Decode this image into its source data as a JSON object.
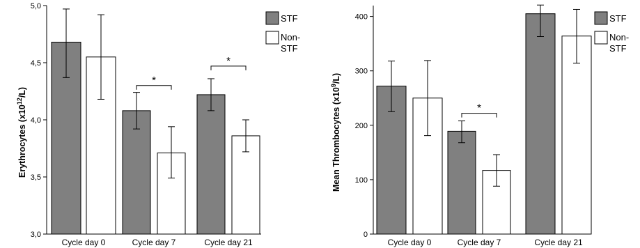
{
  "chart_data": [
    {
      "type": "bar",
      "categories": [
        "Cycle day 0",
        "Cycle day 7",
        "Cycle day 21"
      ],
      "ylabel_main": "Erythrocytes (x10",
      "ylabel_sup": "12",
      "ylabel_tail": "/L)",
      "ylim": [
        3.0,
        5.0
      ],
      "yticks": [
        3.0,
        3.5,
        4.0,
        4.5,
        5.0
      ],
      "ytick_labels": [
        "3,0",
        "3,5",
        "4,0",
        "4,5",
        "5,0"
      ],
      "series": [
        {
          "name": "STF",
          "color": "#808080",
          "values": [
            4.68,
            4.08,
            4.22
          ],
          "err_low": [
            4.37,
            3.92,
            4.08
          ],
          "err_high": [
            4.97,
            4.24,
            4.36
          ]
        },
        {
          "name": "Non-STF",
          "color": "#ffffff",
          "values": [
            4.55,
            3.71,
            3.86
          ],
          "err_low": [
            4.18,
            3.49,
            3.72
          ],
          "err_high": [
            4.92,
            3.94,
            4.0
          ]
        }
      ],
      "significance": [
        {
          "category": 1,
          "label": "*",
          "y": 4.3
        },
        {
          "category": 2,
          "label": "*",
          "y": 4.47
        }
      ],
      "legend": {
        "items": [
          "STF",
          "Non-STF"
        ],
        "nonstf_line1": "Non-",
        "nonstf_line2": "STF",
        "placement": "top-right"
      }
    },
    {
      "type": "bar",
      "categories": [
        "Cycle day 0",
        "Cycle day 7",
        "Cycle day 21"
      ],
      "ylabel_main": "Mean Thrombocytes (x10",
      "ylabel_sup": "9",
      "ylabel_tail": "/L)",
      "ylim": [
        0,
        420
      ],
      "yticks": [
        0,
        100,
        200,
        300,
        400
      ],
      "ytick_labels": [
        "0",
        "100",
        "200",
        "300",
        "400"
      ],
      "series": [
        {
          "name": "STF",
          "color": "#808080",
          "values": [
            272,
            189,
            405
          ],
          "err_low": [
            225,
            168,
            363
          ],
          "err_high": [
            318,
            208,
            421
          ]
        },
        {
          "name": "Non-STF",
          "color": "#ffffff",
          "values": [
            250,
            117,
            364
          ],
          "err_low": [
            181,
            88,
            314
          ],
          "err_high": [
            319,
            146,
            413
          ]
        }
      ],
      "significance": [
        {
          "category": 1,
          "label": "*",
          "y": 222
        }
      ],
      "legend": {
        "items": [
          "STF",
          "Non-STF"
        ],
        "nonstf_line1": "Non-",
        "nonstf_line2": "STF",
        "placement": "top-right"
      }
    }
  ]
}
